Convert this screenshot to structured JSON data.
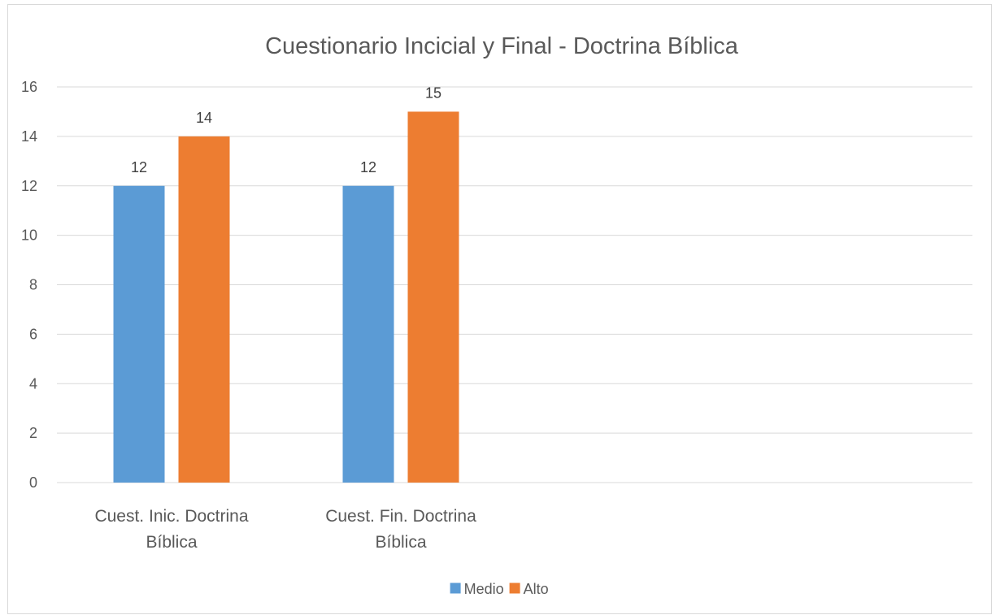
{
  "chart_data": {
    "type": "bar",
    "title": "Cuestionario Incicial y Final - Doctrina Bíblica",
    "xlabel": "",
    "ylabel": "",
    "categories": [
      [
        "Cuest. Inic. Doctrina",
        "Bíblica"
      ],
      [
        "Cuest. Fin. Doctrina",
        "Bíblica"
      ]
    ],
    "series": [
      {
        "name": "Medio",
        "color": "#5b9bd5",
        "values": [
          12,
          12
        ]
      },
      {
        "name": "Alto",
        "color": "#ed7d31",
        "values": [
          14,
          15
        ]
      }
    ],
    "ylim": [
      0,
      16
    ],
    "yticks": [
      0,
      2,
      4,
      6,
      8,
      10,
      12,
      14,
      16
    ],
    "grid": true,
    "data_labels": true,
    "legend_position": "bottom"
  }
}
